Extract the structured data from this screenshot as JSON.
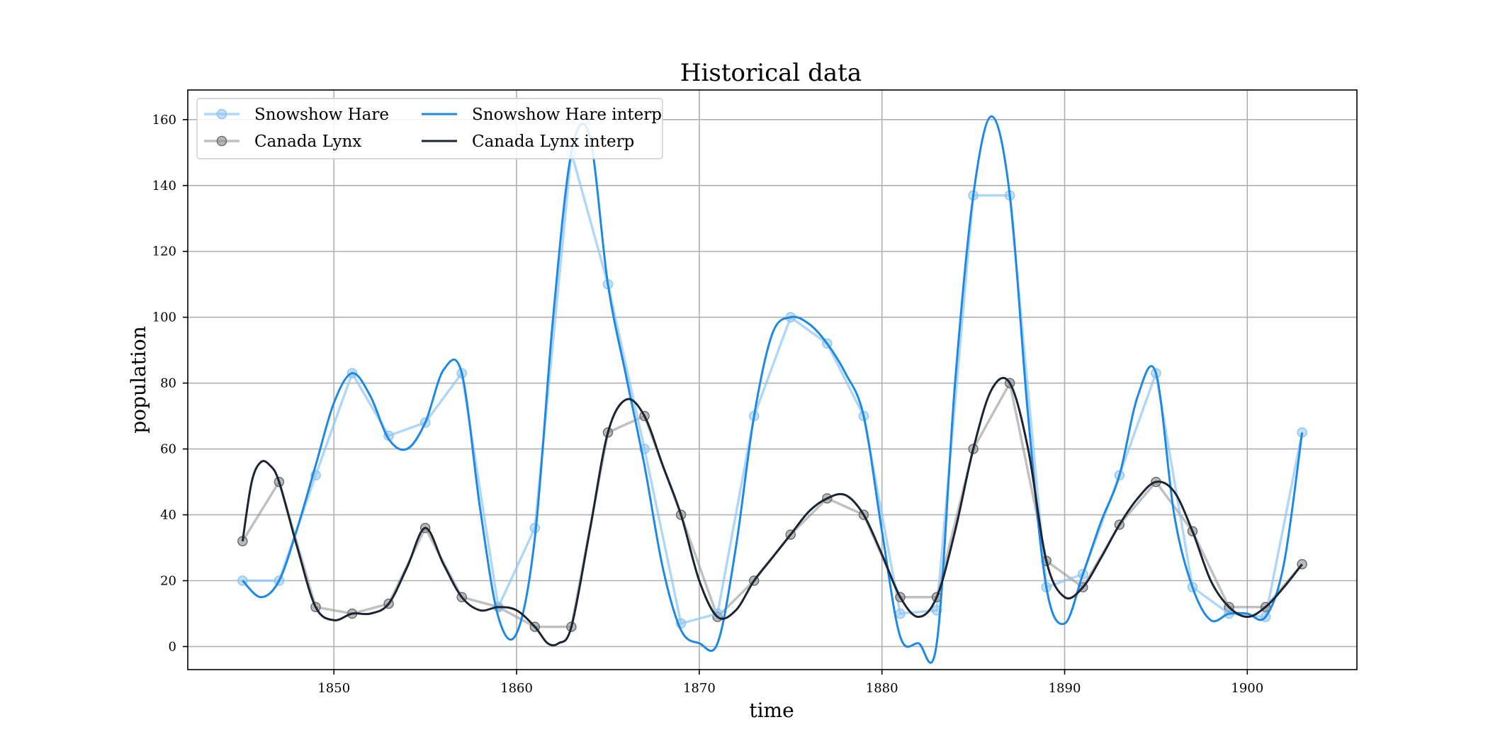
{
  "chart_data": {
    "type": "line",
    "title": "Historical data",
    "xlabel": "time",
    "ylabel": "population",
    "xlim": [
      1842,
      1906
    ],
    "ylim": [
      -7,
      169
    ],
    "x_ticks": [
      1850,
      1860,
      1870,
      1880,
      1890,
      1900
    ],
    "y_ticks": [
      0,
      20,
      40,
      60,
      80,
      100,
      120,
      140,
      160
    ],
    "grid": true,
    "legend_position": "top-left",
    "colors": {
      "hare_data": "#8fc6f5",
      "lynx_data": "#8c8c8c",
      "hare_interp": "#1e88e5",
      "lynx_interp": "#1c2333"
    },
    "series": [
      {
        "name": "Snowshow Hare",
        "style": "line-with-markers",
        "x": [
          1845,
          1847,
          1849,
          1851,
          1853,
          1855,
          1857,
          1859,
          1861,
          1863,
          1865,
          1867,
          1869,
          1871,
          1873,
          1875,
          1877,
          1879,
          1881,
          1883,
          1885,
          1887,
          1889,
          1891,
          1893,
          1895,
          1897,
          1899,
          1901,
          1903
        ],
        "values": [
          20,
          20,
          52,
          83,
          64,
          68,
          83,
          12,
          36,
          150,
          110,
          60,
          7,
          10,
          70,
          100,
          92,
          70,
          10,
          11,
          137,
          137,
          18,
          22,
          52,
          83,
          18,
          10,
          9,
          65
        ]
      },
      {
        "name": "Canada Lynx",
        "style": "line-with-markers",
        "x": [
          1845,
          1847,
          1849,
          1851,
          1853,
          1855,
          1857,
          1859,
          1861,
          1863,
          1865,
          1867,
          1869,
          1871,
          1873,
          1875,
          1877,
          1879,
          1881,
          1883,
          1885,
          1887,
          1889,
          1891,
          1893,
          1895,
          1897,
          1899,
          1901,
          1903
        ],
        "values": [
          32,
          50,
          12,
          10,
          13,
          36,
          15,
          12,
          6,
          6,
          65,
          70,
          40,
          9,
          20,
          34,
          45,
          40,
          15,
          15,
          60,
          80,
          26,
          18,
          37,
          50,
          35,
          12,
          12,
          25
        ]
      },
      {
        "name": "Snowshow Hare interp",
        "style": "line",
        "x": [
          1845,
          1846,
          1847,
          1848,
          1849,
          1850,
          1851,
          1852,
          1853,
          1854,
          1855,
          1856,
          1857,
          1858,
          1859,
          1860,
          1861,
          1862,
          1863,
          1864,
          1865,
          1866,
          1867,
          1868,
          1869,
          1870,
          1871,
          1872,
          1873,
          1874,
          1875,
          1876,
          1877,
          1878,
          1879,
          1880,
          1881,
          1882,
          1883,
          1884,
          1885,
          1886,
          1887,
          1888,
          1889,
          1890,
          1891,
          1892,
          1893,
          1894,
          1895,
          1896,
          1897,
          1898,
          1899,
          1900,
          1901,
          1902,
          1903
        ],
        "values": [
          20,
          15,
          20,
          36,
          55,
          74,
          83,
          76,
          63,
          60,
          68,
          84,
          83,
          42,
          9,
          4,
          33,
          100,
          150,
          155,
          110,
          82,
          55,
          24,
          5,
          1,
          1,
          30,
          70,
          95,
          100,
          98,
          92,
          83,
          70,
          35,
          3,
          1,
          1,
          80,
          137,
          161,
          137,
          70,
          18,
          7,
          22,
          38,
          52,
          76,
          83,
          40,
          18,
          8,
          10,
          10,
          9,
          25,
          65
        ]
      },
      {
        "name": "Canada Lynx interp",
        "style": "line",
        "x": [
          1845,
          1845.5,
          1846,
          1846.5,
          1847,
          1848,
          1849,
          1850,
          1851,
          1852,
          1853,
          1854,
          1855,
          1856,
          1857,
          1858,
          1859,
          1860,
          1861,
          1861.7,
          1862.3,
          1863,
          1864,
          1865,
          1866,
          1867,
          1868,
          1869,
          1870,
          1871,
          1872,
          1873,
          1874,
          1875,
          1876,
          1877,
          1878,
          1879,
          1880,
          1881,
          1882,
          1883,
          1884,
          1885,
          1886,
          1887,
          1888,
          1889,
          1890,
          1891,
          1892,
          1893,
          1894,
          1895,
          1896,
          1897,
          1898,
          1899,
          1900,
          1901,
          1902,
          1903
        ],
        "values": [
          32,
          50,
          56,
          55,
          50,
          30,
          12,
          8,
          10,
          10,
          13,
          24,
          36,
          25,
          15,
          11,
          12,
          11,
          6,
          1,
          1,
          6,
          35,
          65,
          75,
          70,
          55,
          40,
          20,
          9,
          11,
          20,
          27,
          34,
          41,
          45,
          46,
          40,
          28,
          15,
          9,
          15,
          35,
          60,
          78,
          80,
          60,
          26,
          15,
          18,
          27,
          37,
          45,
          50,
          47,
          35,
          20,
          12,
          9,
          12,
          18,
          25
        ]
      }
    ]
  }
}
